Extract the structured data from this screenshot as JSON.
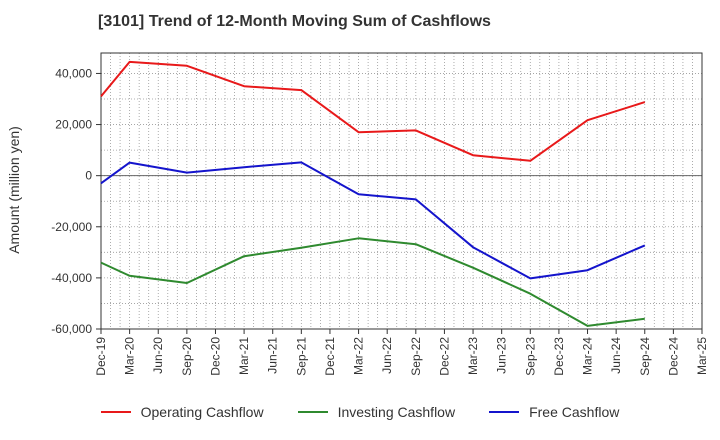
{
  "header": {
    "title": "[3101]  Trend of 12-Month Moving Sum of Cashflows"
  },
  "chart_data": {
    "type": "line",
    "title": "[3101]  Trend of 12-Month Moving Sum of Cashflows",
    "xlabel": "",
    "ylabel": "Amount (million yen)",
    "ylim": [
      -60000,
      48000
    ],
    "yticks": [
      40000,
      20000,
      0,
      -20000,
      -40000,
      -60000
    ],
    "ytick_labels": [
      "40,000",
      "20,000",
      "0",
      "-20,000",
      "-40,000",
      "-60,000"
    ],
    "xticks": [
      "Dec-19",
      "Mar-20",
      "Jun-20",
      "Sep-20",
      "Dec-20",
      "Mar-21",
      "Jun-21",
      "Sep-21",
      "Dec-21",
      "Mar-22",
      "Jun-22",
      "Sep-22",
      "Dec-22",
      "Mar-23",
      "Jun-23",
      "Sep-23",
      "Dec-23",
      "Mar-24",
      "Jun-24",
      "Sep-24",
      "Dec-24",
      "Mar-25"
    ],
    "grid": true,
    "legend_position": "bottom",
    "series": [
      {
        "name": "Operating Cashflow",
        "color": "#e8191a",
        "x": [
          "Dec-19",
          "Mar-20",
          "Sep-20",
          "Mar-21",
          "Sep-21",
          "Mar-22",
          "Sep-22",
          "Mar-23",
          "Sep-23",
          "Mar-24",
          "Sep-24"
        ],
        "values": [
          31000,
          44500,
          43000,
          35000,
          33500,
          17000,
          17700,
          8000,
          5800,
          21700,
          28800
        ]
      },
      {
        "name": "Investing Cashflow",
        "color": "#2f8a2f",
        "x": [
          "Dec-19",
          "Mar-20",
          "Sep-20",
          "Mar-21",
          "Sep-21",
          "Mar-22",
          "Sep-22",
          "Mar-23",
          "Sep-23",
          "Mar-24",
          "Sep-24"
        ],
        "values": [
          -34000,
          -39200,
          -42000,
          -31500,
          -28200,
          -24500,
          -26800,
          -36000,
          -46200,
          -58800,
          -56000
        ]
      },
      {
        "name": "Free Cashflow",
        "color": "#1414cc",
        "x": [
          "Dec-19",
          "Mar-20",
          "Sep-20",
          "Mar-21",
          "Sep-21",
          "Mar-22",
          "Sep-22",
          "Mar-23",
          "Sep-23",
          "Mar-24",
          "Sep-24"
        ],
        "values": [
          -3000,
          5100,
          1200,
          3300,
          5200,
          -7300,
          -9300,
          -28000,
          -40200,
          -37000,
          -27300
        ]
      }
    ]
  }
}
